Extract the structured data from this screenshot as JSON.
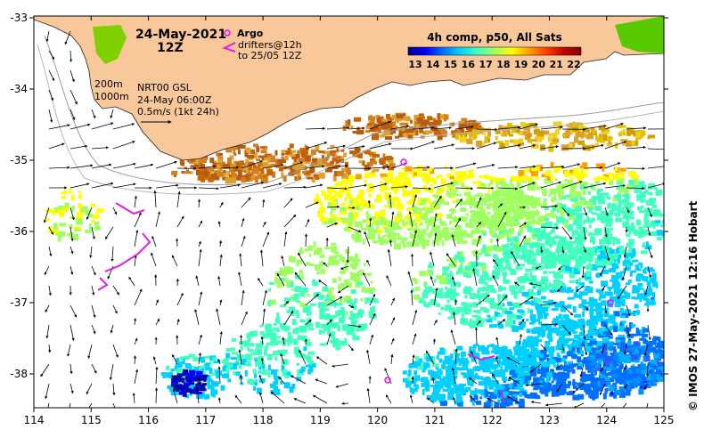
{
  "map": {
    "date_label": "24-May-2021",
    "time_label": "12Z",
    "argo_label": "Argo",
    "drifters_label_1": "drifters@12h",
    "drifters_label_2": "to 25/05 12Z",
    "isobath_200": "200m",
    "isobath_1000": "1000m",
    "altimetry_product": "NRT00 GSL",
    "altimetry_time": "24-May 06:00Z",
    "vector_scale": "0.5m/s (1kt 24h)",
    "colorbar_title": "4h comp, p50, All Sats",
    "colorbar_ticks": [
      "13",
      "14",
      "15",
      "16",
      "17",
      "18",
      "19",
      "20",
      "21",
      "22"
    ],
    "colorbar_colors": [
      "#00007f",
      "#0000ff",
      "#0070ff",
      "#00d0ff",
      "#40ffc0",
      "#a0ff60",
      "#ffff00",
      "#ffa000",
      "#ff4000",
      "#c00000",
      "#800000"
    ],
    "credit": "© IMOS 27-May-2021 12:16 Hobart",
    "x_ticks": [
      "114",
      "115",
      "116",
      "117",
      "118",
      "119",
      "120",
      "121",
      "122",
      "123",
      "124",
      "125"
    ],
    "y_ticks": [
      "-33",
      "-34",
      "-35",
      "-36",
      "-37",
      "-38"
    ],
    "land_color": "#f9c89a",
    "argo_color": "#ff00ff",
    "drifter_color": "#e020e0"
  }
}
